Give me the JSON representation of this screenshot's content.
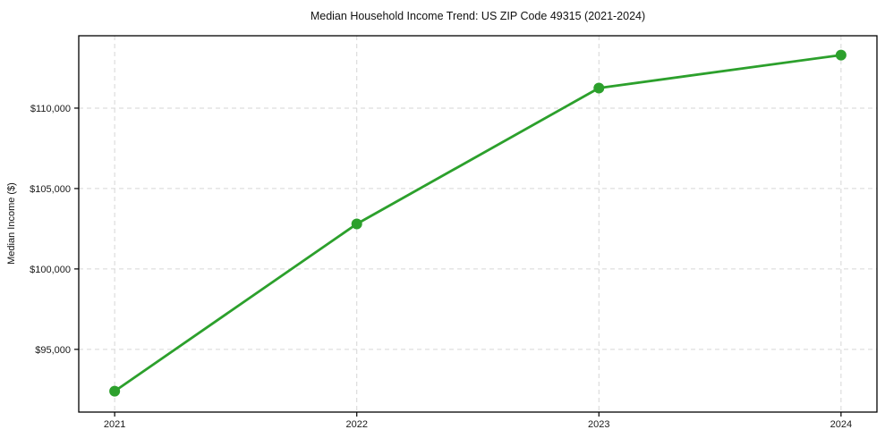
{
  "chart_data": {
    "type": "line",
    "title": "Median Household Income Trend: US ZIP Code 49315 (2021-2024)",
    "xlabel": "",
    "ylabel": "Median Income ($)",
    "x": [
      "2021",
      "2022",
      "2023",
      "2024"
    ],
    "values": [
      92400,
      102800,
      111250,
      113300
    ],
    "yticks": {
      "values": [
        95000,
        100000,
        105000,
        110000
      ],
      "labels": [
        "$95,000",
        "$100,000",
        "$105,000",
        "$110,000"
      ]
    },
    "ylim": [
      91100,
      114500
    ],
    "x_margin_frac": 0.045,
    "grid": "both, dashed",
    "legend": "none",
    "marker": "circle",
    "colors": {
      "line": "#2ca02c",
      "grid": "#d6d6d6",
      "axis": "#000000",
      "text": "#1a1a1a",
      "background": "#ffffff"
    }
  }
}
